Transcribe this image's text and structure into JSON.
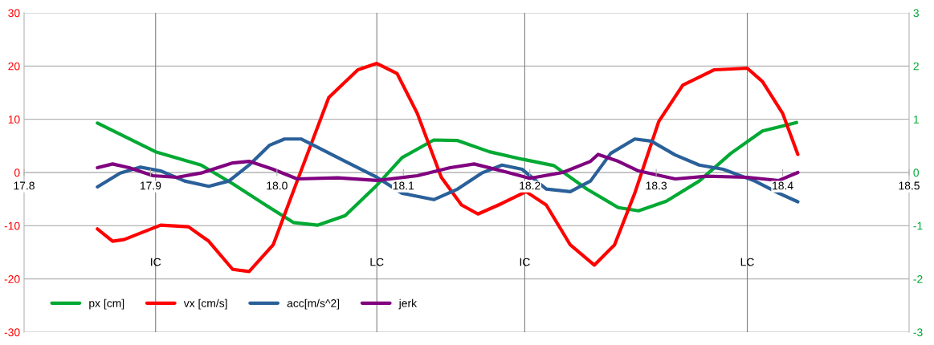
{
  "chart_data": {
    "type": "line",
    "xlim": [
      17.8,
      18.5
    ],
    "xticks": [
      {
        "value": 17.8,
        "label": "17.8"
      },
      {
        "value": 17.9,
        "label": "17.9"
      },
      {
        "value": 18.0,
        "label": "18.0"
      },
      {
        "value": 18.1,
        "label": "18.1"
      },
      {
        "value": 18.2,
        "label": "18.2"
      },
      {
        "value": 18.3,
        "label": "18.3"
      },
      {
        "value": 18.4,
        "label": "18.4"
      },
      {
        "value": 18.5,
        "label": "18.5"
      }
    ],
    "ylim": [
      -30,
      30
    ],
    "yticks": [
      -30,
      -20,
      -10,
      0,
      10,
      20,
      30
    ],
    "y2lim": [
      -3,
      3
    ],
    "y2ticks": [
      -3,
      -2,
      -1,
      0,
      1,
      2,
      3
    ],
    "grid": "y",
    "legend": "bottom left",
    "ref_lines": [
      {
        "axis": "x",
        "value": 17.904,
        "label": "IC",
        "color": "#808080"
      },
      {
        "axis": "x",
        "value": 18.079,
        "label": "LC",
        "color": "#808080"
      },
      {
        "axis": "x",
        "value": 18.196,
        "label": "IC",
        "color": "#808080"
      },
      {
        "axis": "x",
        "value": 18.372,
        "label": "LC",
        "color": "#808080"
      }
    ],
    "series": [
      {
        "name": "px [cm]",
        "color": "#00a933",
        "x": [
          17.858,
          17.904,
          17.94,
          17.965,
          17.991,
          18.013,
          18.032,
          18.054,
          18.079,
          18.099,
          18.124,
          18.143,
          18.168,
          18.194,
          18.219,
          18.245,
          18.27,
          18.286,
          18.308,
          18.334,
          18.359,
          18.384,
          18.411
        ],
        "values": [
          9.3,
          3.9,
          1.4,
          -2.1,
          -6.1,
          -9.4,
          -9.9,
          -8.1,
          -2.4,
          2.8,
          6.1,
          6.0,
          3.9,
          2.5,
          1.3,
          -3.1,
          -6.6,
          -7.2,
          -5.4,
          -1.6,
          3.6,
          7.8,
          9.4
        ]
      },
      {
        "name": "vx [cm/s]",
        "color": "#ff0000",
        "x": [
          17.858,
          17.87,
          17.879,
          17.908,
          17.93,
          17.946,
          17.965,
          17.978,
          17.997,
          18.016,
          18.041,
          18.064,
          18.079,
          18.095,
          18.111,
          18.13,
          18.146,
          18.159,
          18.178,
          18.197,
          18.213,
          18.232,
          18.251,
          18.267,
          18.283,
          18.302,
          18.321,
          18.346,
          18.372,
          18.384,
          18.4,
          18.412
        ],
        "values": [
          -10.6,
          -12.9,
          -12.6,
          -9.9,
          -10.2,
          -12.9,
          -18.2,
          -18.6,
          -13.6,
          -1.6,
          14.1,
          19.3,
          20.5,
          18.6,
          11.1,
          -0.9,
          -6.1,
          -7.8,
          -5.8,
          -3.6,
          -6.1,
          -13.6,
          -17.4,
          -13.6,
          -3.9,
          9.6,
          16.4,
          19.3,
          19.6,
          17.1,
          11.1,
          3.4
        ]
      },
      {
        "name": "acc[m/s^2]",
        "color": "#2a6099",
        "x": [
          17.858,
          17.876,
          17.892,
          17.908,
          17.927,
          17.946,
          17.962,
          17.978,
          17.994,
          18.006,
          18.019,
          18.035,
          18.054,
          18.079,
          18.099,
          18.124,
          18.143,
          18.162,
          18.178,
          18.194,
          18.213,
          18.232,
          18.248,
          18.264,
          18.283,
          18.296,
          18.315,
          18.334,
          18.353,
          18.378,
          18.397,
          18.412
        ],
        "values": [
          -2.7,
          -0.1,
          1.0,
          0.3,
          -1.6,
          -2.6,
          -1.6,
          1.4,
          5.1,
          6.3,
          6.3,
          4.4,
          2.1,
          -0.9,
          -3.9,
          -5.1,
          -3.1,
          -0.1,
          1.4,
          0.6,
          -3.1,
          -3.6,
          -1.6,
          3.6,
          6.3,
          5.9,
          3.3,
          1.4,
          0.6,
          -1.6,
          -3.9,
          -5.5
        ]
      },
      {
        "name": "jerk",
        "color": "#800080",
        "x": [
          17.858,
          17.87,
          17.883,
          17.902,
          17.921,
          17.94,
          17.965,
          17.978,
          17.997,
          18.016,
          18.048,
          18.079,
          18.111,
          18.137,
          18.156,
          18.181,
          18.2,
          18.226,
          18.248,
          18.254,
          18.27,
          18.286,
          18.315,
          18.34,
          18.372,
          18.397,
          18.412
        ],
        "values": [
          0.9,
          1.6,
          0.9,
          -0.6,
          -0.9,
          -0.1,
          1.8,
          2.1,
          0.6,
          -1.2,
          -1.0,
          -1.5,
          -0.6,
          0.9,
          1.6,
          0.1,
          -1.1,
          0.0,
          2.1,
          3.4,
          2.1,
          0.3,
          -1.2,
          -0.7,
          -0.9,
          -1.5,
          0.0
        ]
      }
    ]
  }
}
